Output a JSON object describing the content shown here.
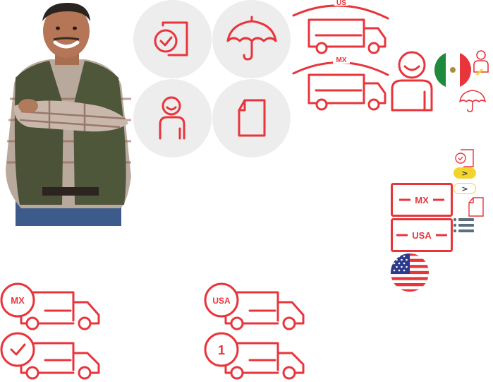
{
  "labels": {
    "us_top": "US",
    "mx_top": "MX",
    "mx_box": "MX",
    "usa_box": "USA",
    "mx_badge": "MX",
    "usa_badge": "USA",
    "one_badge": "1",
    "pill_arrow_1": ">",
    "pill_arrow_2": ">"
  },
  "colors": {
    "accent": "#e8353c",
    "circle": "#ededed",
    "pill_yellow": "#f2d42c",
    "list_icon": "#5a6f7c",
    "mexico_green": "#1f8a3b",
    "flag_blue": "#2b3a8c"
  },
  "icons": [
    "photo-man",
    "document-check-icon",
    "umbrella-icon",
    "person-icon",
    "document-icon",
    "truck-icon",
    "mexico-flag-icon",
    "us-flag-icon",
    "list-icon"
  ]
}
